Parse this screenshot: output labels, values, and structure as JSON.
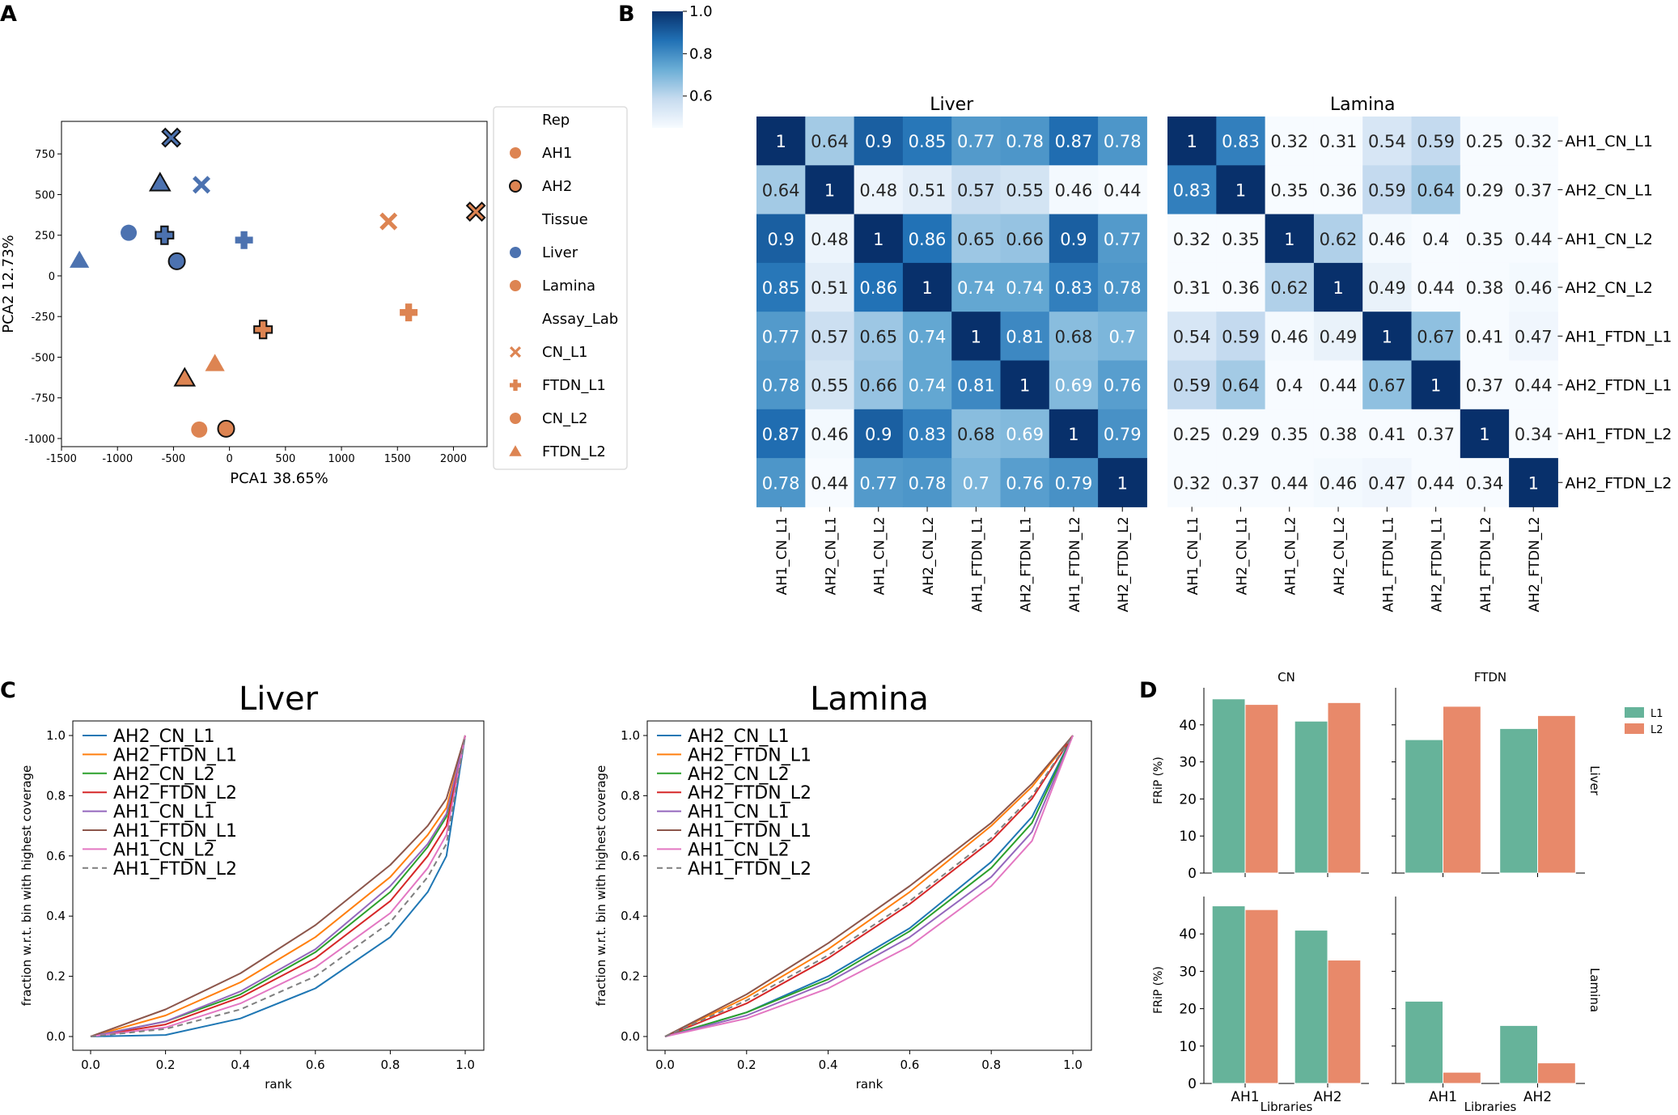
{
  "panel_labels": [
    "A",
    "B",
    "C",
    "D"
  ],
  "colors": {
    "liver": "#4c72b0",
    "lamina": "#dd8452",
    "L1": "#66b39a",
    "L2": "#e8896a",
    "heat_low": "#f7fbff",
    "heat_high": "#08306b"
  },
  "chart_data": [
    {
      "id": "A",
      "type": "scatter",
      "title": "",
      "xlabel": "PCA1 38.65%",
      "ylabel": "PCA2 12.73%",
      "xlim": [
        -1500,
        2300
      ],
      "ylim": [
        -1050,
        950
      ],
      "xticks": [
        -1500,
        -1000,
        -500,
        0,
        500,
        1000,
        1500,
        2000
      ],
      "yticks": [
        -1000,
        -750,
        -500,
        -250,
        0,
        250,
        500,
        750
      ],
      "points": [
        {
          "x": -520,
          "y": 850,
          "marker": "x",
          "tissue": "Liver",
          "rep": "AH2"
        },
        {
          "x": -620,
          "y": 570,
          "marker": "triangle",
          "tissue": "Liver",
          "rep": "AH2"
        },
        {
          "x": -250,
          "y": 560,
          "marker": "x",
          "tissue": "Liver",
          "rep": "AH1"
        },
        {
          "x": -900,
          "y": 265,
          "marker": "circle",
          "tissue": "Liver",
          "rep": "AH1"
        },
        {
          "x": -580,
          "y": 250,
          "marker": "plus",
          "tissue": "Liver",
          "rep": "AH2"
        },
        {
          "x": 130,
          "y": 220,
          "marker": "plus",
          "tissue": "Liver",
          "rep": "AH1"
        },
        {
          "x": -470,
          "y": 90,
          "marker": "circle",
          "tissue": "Liver",
          "rep": "AH2"
        },
        {
          "x": -1340,
          "y": 95,
          "marker": "triangle",
          "tissue": "Liver",
          "rep": "AH1"
        },
        {
          "x": 2200,
          "y": 395,
          "marker": "x",
          "tissue": "Lamina",
          "rep": "AH2"
        },
        {
          "x": 1420,
          "y": 335,
          "marker": "x",
          "tissue": "Lamina",
          "rep": "AH1"
        },
        {
          "x": 1600,
          "y": -225,
          "marker": "plus",
          "tissue": "Lamina",
          "rep": "AH1"
        },
        {
          "x": 300,
          "y": -330,
          "marker": "plus",
          "tissue": "Lamina",
          "rep": "AH2"
        },
        {
          "x": -130,
          "y": -540,
          "marker": "triangle",
          "tissue": "Lamina",
          "rep": "AH1"
        },
        {
          "x": -400,
          "y": -630,
          "marker": "triangle",
          "tissue": "Lamina",
          "rep": "AH2"
        },
        {
          "x": -270,
          "y": -945,
          "marker": "circle",
          "tissue": "Lamina",
          "rep": "AH1"
        },
        {
          "x": -30,
          "y": -940,
          "marker": "circle",
          "tissue": "Lamina",
          "rep": "AH2"
        }
      ],
      "legend": {
        "position": "outside-right",
        "entries": [
          {
            "label": "Rep",
            "kind": "header"
          },
          {
            "label": "AH1",
            "kind": "circle",
            "color": "#dd8452",
            "edge": false
          },
          {
            "label": "AH2",
            "kind": "circle",
            "color": "#dd8452",
            "edge": true
          },
          {
            "label": "Tissue",
            "kind": "header"
          },
          {
            "label": "Liver",
            "kind": "circle",
            "color": "#4c72b0",
            "edge": false
          },
          {
            "label": "Lamina",
            "kind": "circle",
            "color": "#dd8452",
            "edge": false
          },
          {
            "label": "Assay_Lab",
            "kind": "header"
          },
          {
            "label": "CN_L1",
            "kind": "x",
            "color": "#dd8452",
            "edge": false
          },
          {
            "label": "FTDN_L1",
            "kind": "plus",
            "color": "#dd8452",
            "edge": false
          },
          {
            "label": "CN_L2",
            "kind": "circle",
            "color": "#dd8452",
            "edge": false
          },
          {
            "label": "FTDN_L2",
            "kind": "triangle",
            "color": "#dd8452",
            "edge": false
          }
        ]
      }
    },
    {
      "id": "B",
      "type": "heatmap",
      "colorbar": {
        "ticks": [
          0.6,
          0.8,
          1.0
        ],
        "tick_labels": [
          "0.6",
          "0.8",
          "1.0"
        ],
        "vmin": 0.45,
        "vmax": 1.0
      },
      "row_labels": [
        "AH1_CN_L1",
        "AH2_CN_L1",
        "AH1_CN_L2",
        "AH2_CN_L2",
        "AH1_FTDN_L1",
        "AH2_FTDN_L1",
        "AH1_FTDN_L2",
        "AH2_FTDN_L2"
      ],
      "col_labels": [
        "AH1_CN_L1",
        "AH2_CN_L1",
        "AH1_CN_L2",
        "AH2_CN_L2",
        "AH1_FTDN_L1",
        "AH2_FTDN_L1",
        "AH1_FTDN_L2",
        "AH2_FTDN_L2"
      ],
      "matrices": [
        {
          "title": "Liver",
          "values": [
            [
              "1",
              "0.64",
              "0.9",
              "0.85",
              "0.77",
              "0.78",
              "0.87",
              "0.78"
            ],
            [
              "0.64",
              "1",
              "0.48",
              "0.51",
              "0.57",
              "0.55",
              "0.46",
              "0.44"
            ],
            [
              "0.9",
              "0.48",
              "1",
              "0.86",
              "0.65",
              "0.66",
              "0.9",
              "0.77"
            ],
            [
              "0.85",
              "0.51",
              "0.86",
              "1",
              "0.74",
              "0.74",
              "0.83",
              "0.78"
            ],
            [
              "0.77",
              "0.57",
              "0.65",
              "0.74",
              "1",
              "0.81",
              "0.68",
              "0.7"
            ],
            [
              "0.78",
              "0.55",
              "0.66",
              "0.74",
              "0.81",
              "1",
              "0.69",
              "0.76"
            ],
            [
              "0.87",
              "0.46",
              "0.9",
              "0.83",
              "0.68",
              "0.69",
              "1",
              "0.79"
            ],
            [
              "0.78",
              "0.44",
              "0.77",
              "0.78",
              "0.7",
              "0.76",
              "0.79",
              "1"
            ]
          ]
        },
        {
          "title": "Lamina",
          "values": [
            [
              "1",
              "0.83",
              "0.32",
              "0.31",
              "0.54",
              "0.59",
              "0.25",
              "0.32"
            ],
            [
              "0.83",
              "1",
              "0.35",
              "0.36",
              "0.59",
              "0.64",
              "0.29",
              "0.37"
            ],
            [
              "0.32",
              "0.35",
              "1",
              "0.62",
              "0.46",
              "0.4",
              "0.35",
              "0.44"
            ],
            [
              "0.31",
              "0.36",
              "0.62",
              "1",
              "0.49",
              "0.44",
              "0.38",
              "0.46"
            ],
            [
              "0.54",
              "0.59",
              "0.46",
              "0.49",
              "1",
              "0.67",
              "0.41",
              "0.47"
            ],
            [
              "0.59",
              "0.64",
              "0.4",
              "0.44",
              "0.67",
              "1",
              "0.37",
              "0.44"
            ],
            [
              "0.25",
              "0.29",
              "0.35",
              "0.38",
              "0.41",
              "0.37",
              "1",
              "0.34"
            ],
            [
              "0.32",
              "0.37",
              "0.44",
              "0.46",
              "0.47",
              "0.44",
              "0.34",
              "1"
            ]
          ]
        }
      ]
    },
    {
      "id": "C",
      "type": "line",
      "xlabel": "rank",
      "ylabel": "fraction w.r.t. bin with highest coverage",
      "xlim": [
        0,
        1
      ],
      "ylim": [
        0,
        1
      ],
      "xticks": [
        "0.0",
        "0.2",
        "0.4",
        "0.6",
        "0.8",
        "1.0"
      ],
      "yticks": [
        "0.0",
        "0.2",
        "0.4",
        "0.6",
        "0.8",
        "1.0"
      ],
      "legend_position": "top-left",
      "series_styles": [
        {
          "name": "AH2_CN_L1",
          "color": "#1f77b4",
          "dash": false
        },
        {
          "name": "AH2_FTDN_L1",
          "color": "#ff7f0e",
          "dash": false
        },
        {
          "name": "AH2_CN_L2",
          "color": "#2ca02c",
          "dash": false
        },
        {
          "name": "AH2_FTDN_L2",
          "color": "#d62728",
          "dash": false
        },
        {
          "name": "AH1_CN_L1",
          "color": "#9467bd",
          "dash": false
        },
        {
          "name": "AH1_FTDN_L1",
          "color": "#8c564b",
          "dash": false
        },
        {
          "name": "AH1_CN_L2",
          "color": "#e377c2",
          "dash": false
        },
        {
          "name": "AH1_FTDN_L2",
          "color": "#7f7f7f",
          "dash": true
        }
      ],
      "panels": [
        {
          "title": "Liver",
          "series": [
            {
              "name": "AH2_CN_L1",
              "x": [
                0,
                0.2,
                0.4,
                0.6,
                0.8,
                0.9,
                0.95,
                1.0
              ],
              "y": [
                0,
                0.005,
                0.06,
                0.16,
                0.33,
                0.48,
                0.6,
                1.0
              ]
            },
            {
              "name": "AH2_FTDN_L1",
              "x": [
                0,
                0.2,
                0.4,
                0.6,
                0.8,
                0.9,
                0.95,
                1.0
              ],
              "y": [
                0,
                0.07,
                0.18,
                0.33,
                0.53,
                0.67,
                0.76,
                1.0
              ]
            },
            {
              "name": "AH2_CN_L2",
              "x": [
                0,
                0.2,
                0.4,
                0.6,
                0.8,
                0.9,
                0.95,
                1.0
              ],
              "y": [
                0,
                0.05,
                0.14,
                0.28,
                0.48,
                0.63,
                0.73,
                1.0
              ]
            },
            {
              "name": "AH2_FTDN_L2",
              "x": [
                0,
                0.2,
                0.4,
                0.6,
                0.8,
                0.9,
                0.95,
                1.0
              ],
              "y": [
                0,
                0.04,
                0.13,
                0.26,
                0.45,
                0.6,
                0.7,
                1.0
              ]
            },
            {
              "name": "AH1_CN_L1",
              "x": [
                0,
                0.2,
                0.4,
                0.6,
                0.8,
                0.9,
                0.95,
                1.0
              ],
              "y": [
                0,
                0.05,
                0.15,
                0.29,
                0.5,
                0.64,
                0.74,
                1.0
              ]
            },
            {
              "name": "AH1_FTDN_L1",
              "x": [
                0,
                0.2,
                0.4,
                0.6,
                0.8,
                0.9,
                0.95,
                1.0
              ],
              "y": [
                0,
                0.09,
                0.21,
                0.37,
                0.57,
                0.7,
                0.79,
                1.0
              ]
            },
            {
              "name": "AH1_CN_L2",
              "x": [
                0,
                0.2,
                0.4,
                0.6,
                0.8,
                0.9,
                0.95,
                1.0
              ],
              "y": [
                0,
                0.03,
                0.11,
                0.23,
                0.41,
                0.56,
                0.67,
                1.0
              ]
            },
            {
              "name": "AH1_FTDN_L2",
              "x": [
                0,
                0.2,
                0.4,
                0.6,
                0.8,
                0.9,
                0.95,
                1.0
              ],
              "y": [
                0,
                0.025,
                0.09,
                0.2,
                0.38,
                0.53,
                0.64,
                1.0
              ]
            }
          ]
        },
        {
          "title": "Lamina",
          "series": [
            {
              "name": "AH2_CN_L1",
              "x": [
                0,
                0.2,
                0.4,
                0.6,
                0.8,
                0.9,
                1.0
              ],
              "y": [
                0,
                0.08,
                0.2,
                0.36,
                0.58,
                0.73,
                1.0
              ]
            },
            {
              "name": "AH2_FTDN_L1",
              "x": [
                0,
                0.2,
                0.4,
                0.6,
                0.8,
                0.9,
                1.0
              ],
              "y": [
                0,
                0.13,
                0.29,
                0.48,
                0.7,
                0.83,
                1.0
              ]
            },
            {
              "name": "AH2_CN_L2",
              "x": [
                0,
                0.2,
                0.4,
                0.6,
                0.8,
                0.9,
                1.0
              ],
              "y": [
                0,
                0.08,
                0.19,
                0.35,
                0.56,
                0.71,
                1.0
              ]
            },
            {
              "name": "AH2_FTDN_L2",
              "x": [
                0,
                0.2,
                0.4,
                0.6,
                0.8,
                0.9,
                1.0
              ],
              "y": [
                0,
                0.11,
                0.26,
                0.44,
                0.65,
                0.79,
                1.0
              ]
            },
            {
              "name": "AH1_CN_L1",
              "x": [
                0,
                0.2,
                0.4,
                0.6,
                0.8,
                0.9,
                1.0
              ],
              "y": [
                0,
                0.07,
                0.18,
                0.33,
                0.53,
                0.68,
                1.0
              ]
            },
            {
              "name": "AH1_FTDN_L1",
              "x": [
                0,
                0.2,
                0.4,
                0.6,
                0.8,
                0.9,
                1.0
              ],
              "y": [
                0,
                0.14,
                0.31,
                0.5,
                0.71,
                0.84,
                1.0
              ]
            },
            {
              "name": "AH1_CN_L2",
              "x": [
                0,
                0.2,
                0.4,
                0.6,
                0.8,
                0.9,
                1.0
              ],
              "y": [
                0,
                0.06,
                0.16,
                0.3,
                0.5,
                0.65,
                1.0
              ]
            },
            {
              "name": "AH1_FTDN_L2",
              "x": [
                0,
                0.2,
                0.4,
                0.6,
                0.8,
                0.9,
                1.0
              ],
              "y": [
                0,
                0.12,
                0.27,
                0.45,
                0.66,
                0.8,
                1.0
              ]
            }
          ]
        }
      ]
    },
    {
      "id": "D",
      "type": "bar",
      "categories": [
        "AH1",
        "AH2"
      ],
      "xlabel": "Libraries",
      "ylabel": "FRiP (%)",
      "ylim": [
        0,
        50
      ],
      "yticks": [
        0,
        10,
        20,
        30,
        40
      ],
      "col_titles": [
        "CN",
        "FTDN"
      ],
      "row_titles": [
        "Liver",
        "Lamina"
      ],
      "legend": {
        "position": "right",
        "entries": [
          "L1",
          "L2"
        ]
      },
      "facets": [
        {
          "row": "Liver",
          "col": "CN",
          "series": [
            {
              "name": "L1",
              "values": [
                47,
                41
              ]
            },
            {
              "name": "L2",
              "values": [
                45.5,
                46
              ]
            }
          ]
        },
        {
          "row": "Liver",
          "col": "FTDN",
          "series": [
            {
              "name": "L1",
              "values": [
                36,
                39
              ]
            },
            {
              "name": "L2",
              "values": [
                45,
                42.5
              ]
            }
          ]
        },
        {
          "row": "Lamina",
          "col": "CN",
          "series": [
            {
              "name": "L1",
              "values": [
                47.5,
                41
              ]
            },
            {
              "name": "L2",
              "values": [
                46.5,
                33
              ]
            }
          ]
        },
        {
          "row": "Lamina",
          "col": "FTDN",
          "series": [
            {
              "name": "L1",
              "values": [
                22,
                15.5
              ]
            },
            {
              "name": "L2",
              "values": [
                3,
                5.5
              ]
            }
          ]
        }
      ]
    }
  ]
}
